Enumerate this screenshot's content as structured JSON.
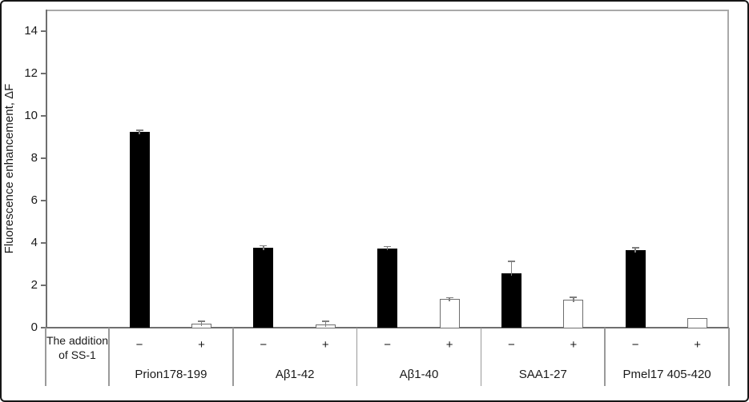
{
  "chart_data": {
    "type": "bar",
    "title": "",
    "ylabel": "Fluorescence enhancement, ΔF",
    "xlabel": "",
    "ylim": [
      0,
      15
    ],
    "yticks": [
      0,
      2,
      4,
      6,
      8,
      10,
      12,
      14
    ],
    "grid": false,
    "legend_position": "none",
    "categories": [
      "Prion178-199",
      "Aβ1-42",
      "Aβ1-40",
      "SAA1-27",
      "Pmel17 405-420"
    ],
    "condition_label": [
      "The addition",
      "of SS-1"
    ],
    "series": [
      {
        "symbol": "−",
        "fill": "#000000",
        "border": "#000000",
        "values": [
          9.25,
          3.78,
          3.75,
          2.55,
          3.67
        ],
        "errors": [
          0.08,
          0.12,
          0.1,
          0.6,
          0.13
        ]
      },
      {
        "symbol": "+",
        "fill": "#ffffff",
        "border": "#6e6e6e",
        "values": [
          0.18,
          0.15,
          1.35,
          1.33,
          0.46
        ],
        "errors": [
          0.15,
          0.18,
          0.1,
          0.13,
          0
        ]
      }
    ]
  },
  "colors": {
    "error_bar": "#7f7f7f",
    "axis": "#6f6f6f",
    "frame": "#a9a9a9",
    "table_line": "#9a9a9a",
    "text": "#1a1a1a",
    "figure_border": "#161616"
  }
}
